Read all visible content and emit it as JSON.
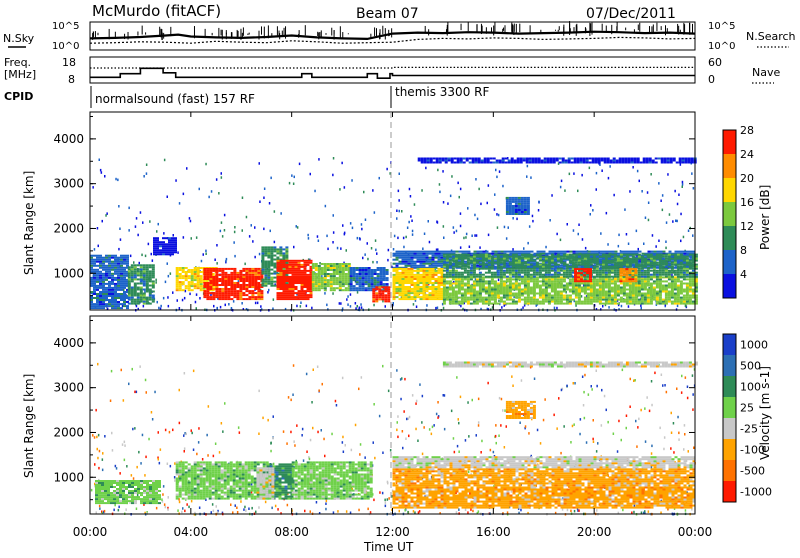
{
  "header": {
    "station": "McMurdo (fitACF)",
    "beam": "Beam 07",
    "date": "07/Dec/2011"
  },
  "labels": {
    "nsky": "N.Sky",
    "nsearch": "N.Search",
    "freq_line1": "Freq.",
    "freq_line2": "[MHz]",
    "nave": "Nave",
    "cpid": "CPID",
    "time_axis": "Time UT"
  },
  "chart_data": [
    {
      "type": "line",
      "name": "noise-panel",
      "left_ticks": [
        "10^5",
        "10^0"
      ],
      "right_ticks": [
        "10^5",
        "10^0"
      ],
      "series": [
        {
          "name": "N.Sky",
          "x": [
            0,
            1,
            2,
            3,
            3.5,
            4,
            5,
            6,
            7,
            8,
            9,
            10,
            11,
            12,
            13,
            14,
            15,
            16,
            17,
            18,
            19,
            20,
            21,
            22,
            23,
            24
          ],
          "y": [
            2.0,
            2.1,
            2.3,
            2.6,
            2.8,
            2.4,
            2.2,
            2.1,
            2.3,
            2.6,
            2.2,
            2.0,
            1.9,
            3.0,
            3.2,
            3.1,
            3.3,
            3.2,
            3.0,
            3.1,
            3.2,
            3.4,
            3.3,
            3.1,
            3.2,
            3.0
          ]
        },
        {
          "name": "N.Search",
          "x": [
            0,
            1,
            2,
            3,
            4,
            5,
            6,
            7,
            8,
            9,
            10,
            11,
            12,
            13,
            14,
            15,
            16,
            17,
            18,
            19,
            20,
            21,
            22,
            23,
            24
          ],
          "y": [
            1.0,
            1.1,
            1.3,
            1.2,
            1.0,
            1.4,
            1.2,
            1.1,
            1.5,
            1.3,
            1.0,
            1.1,
            1.2,
            1.8,
            2.0,
            1.9,
            2.1,
            2.0,
            1.8,
            1.9,
            2.0,
            2.2,
            2.1,
            1.9,
            2.0
          ]
        }
      ]
    },
    {
      "type": "line",
      "name": "freq-nave-panel",
      "left_ticks": [
        18,
        8
      ],
      "right_ticks": [
        60,
        0
      ],
      "series": [
        {
          "name": "Freq.",
          "x": [
            0,
            1.2,
            2.0,
            2.9,
            3.4,
            8.4,
            8.8,
            11.0,
            11.4,
            11.9,
            12.0,
            24
          ],
          "y": [
            9.5,
            11.5,
            14.5,
            12.0,
            9.5,
            11.5,
            9.5,
            11.5,
            9.0,
            11.5,
            10.5,
            10.5
          ]
        },
        {
          "name": "Nave",
          "x": [
            0,
            12,
            12.01,
            24
          ],
          "y": [
            40,
            40,
            42,
            42
          ]
        }
      ]
    },
    {
      "type": "table",
      "name": "cpid-bar",
      "segments": [
        {
          "label": "normalsound (fast) 157 RF",
          "start": 0,
          "end": 12
        },
        {
          "label": "themis 3300 RF",
          "start": 12,
          "end": 24
        }
      ]
    },
    {
      "type": "heatmap",
      "name": "power",
      "ylabel": "Slant Range [km]",
      "xlim": [
        0,
        24
      ],
      "ylim": [
        180,
        4600
      ],
      "y_ticks": [
        1000,
        2000,
        3000,
        4000
      ],
      "colorbar_label": "Power [dB]",
      "colorbar_ticks": [
        4,
        8,
        12,
        16,
        20,
        24,
        28
      ],
      "colors": [
        "#0a10e0",
        "#1d63c9",
        "#2e8b57",
        "#7cc93e",
        "#ffd700",
        "#ff8c00",
        "#ff1a00"
      ],
      "regions": [
        {
          "t0": 0.0,
          "t1": 1.5,
          "r0": 200,
          "r1": 1400,
          "level": 1
        },
        {
          "t0": 1.5,
          "t1": 2.5,
          "r0": 300,
          "r1": 1200,
          "level": 2
        },
        {
          "t0": 2.5,
          "t1": 3.4,
          "r0": 1400,
          "r1": 1800,
          "level": 0
        },
        {
          "t0": 3.4,
          "t1": 5.0,
          "r0": 600,
          "r1": 1100,
          "level": 4
        },
        {
          "t0": 4.5,
          "t1": 6.8,
          "r0": 400,
          "r1": 1100,
          "level": 6
        },
        {
          "t0": 6.8,
          "t1": 7.8,
          "r0": 700,
          "r1": 1600,
          "level": 2
        },
        {
          "t0": 7.4,
          "t1": 8.8,
          "r0": 400,
          "r1": 1300,
          "level": 6
        },
        {
          "t0": 8.8,
          "t1": 10.3,
          "r0": 600,
          "r1": 1200,
          "level": 3
        },
        {
          "t0": 10.3,
          "t1": 11.8,
          "r0": 600,
          "r1": 1100,
          "level": 1
        },
        {
          "t0": 11.2,
          "t1": 11.8,
          "r0": 350,
          "r1": 700,
          "level": 6
        },
        {
          "t0": 12.0,
          "t1": 24.0,
          "r0": 1100,
          "r1": 1500,
          "level": 1
        },
        {
          "t0": 12.0,
          "t1": 14.0,
          "r0": 400,
          "r1": 1100,
          "level": 4
        },
        {
          "t0": 14.0,
          "t1": 24.0,
          "r0": 300,
          "r1": 900,
          "level": 3
        },
        {
          "t0": 14.0,
          "t1": 24.0,
          "r0": 900,
          "r1": 1400,
          "level": 2
        },
        {
          "t0": 16.5,
          "t1": 17.4,
          "r0": 2300,
          "r1": 2700,
          "level": 1
        },
        {
          "t0": 19.2,
          "t1": 19.8,
          "r0": 800,
          "r1": 1100,
          "level": 6
        },
        {
          "t0": 21.0,
          "t1": 21.7,
          "r0": 800,
          "r1": 1100,
          "level": 5
        },
        {
          "t0": 13.0,
          "t1": 24.0,
          "r0": 3450,
          "r1": 3560,
          "level": 0
        }
      ]
    },
    {
      "type": "heatmap",
      "name": "velocity",
      "ylabel": "Slant Range [km]",
      "xlim": [
        0,
        24
      ],
      "ylim": [
        180,
        4600
      ],
      "y_ticks": [
        1000,
        2000,
        3000,
        4000
      ],
      "x_ticks": [
        "00:00",
        "04:00",
        "08:00",
        "12:00",
        "16:00",
        "20:00",
        "00:00"
      ],
      "xlabel": "Time UT",
      "colorbar_label": "Velocity [m s-1]",
      "colorbar_ticks": [
        1000,
        500,
        100,
        25,
        -25,
        -100,
        -500,
        -1000
      ],
      "colors": [
        "#1a3fc9",
        "#2c6fb4",
        "#2e8b57",
        "#6fd14a",
        "#c8c8c8",
        "#ffa300",
        "#ff7200",
        "#ff1a00"
      ],
      "regions": [
        {
          "t0": 0.2,
          "t1": 2.8,
          "r0": 400,
          "r1": 900,
          "level": 3
        },
        {
          "t0": 3.4,
          "t1": 7.0,
          "r0": 500,
          "r1": 1350,
          "level": 3
        },
        {
          "t0": 7.0,
          "t1": 8.0,
          "r0": 500,
          "r1": 1300,
          "level": 2
        },
        {
          "t0": 8.0,
          "t1": 11.2,
          "r0": 500,
          "r1": 1350,
          "level": 3
        },
        {
          "t0": 6.6,
          "t1": 7.2,
          "r0": 500,
          "r1": 1200,
          "level": 4
        },
        {
          "t0": 12.0,
          "t1": 24.0,
          "r0": 300,
          "r1": 1200,
          "level": 5
        },
        {
          "t0": 12.0,
          "t1": 24.0,
          "r0": 1200,
          "r1": 1450,
          "level": 4
        },
        {
          "t0": 16.5,
          "t1": 17.6,
          "r0": 2300,
          "r1": 2700,
          "level": 5
        },
        {
          "t0": 14.0,
          "t1": 24.0,
          "r0": 3450,
          "r1": 3560,
          "level": 4
        }
      ]
    }
  ],
  "cpid_labels": {
    "seg1": "normalsound (fast) 157 RF",
    "seg2": "themis 3300 RF"
  }
}
